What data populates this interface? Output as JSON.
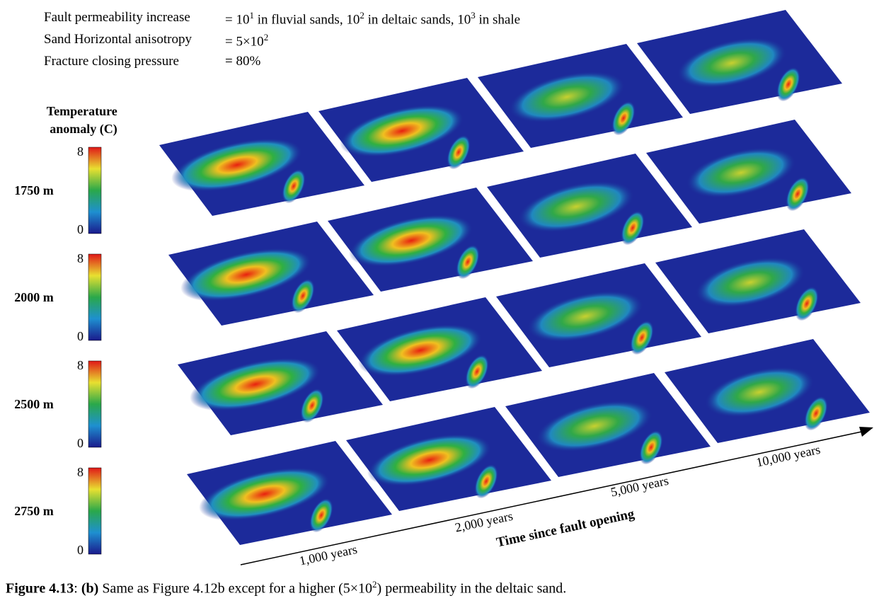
{
  "parameters": [
    {
      "label": "Fault permeability increase",
      "value": [
        "= 10",
        "1",
        " in fluvial sands, 10",
        "2",
        " in deltaic sands, 10",
        "3",
        " in shale"
      ]
    },
    {
      "label": "Sand Horizontal anisotropy",
      "value": [
        "= 5×10",
        "2"
      ]
    },
    {
      "label": "Fracture closing pressure",
      "value": [
        "= 80%"
      ]
    }
  ],
  "colorbar_title": "Temperature anomaly (C)",
  "rows": [
    {
      "depth": "1750 m",
      "ticks": [
        8,
        0
      ]
    },
    {
      "depth": "2000 m",
      "ticks": [
        8,
        0
      ]
    },
    {
      "depth": "2500 m",
      "ticks": [
        8,
        0
      ]
    },
    {
      "depth": "2750 m",
      "ticks": [
        8,
        0
      ]
    }
  ],
  "time_axis": {
    "title": "Time since fault opening",
    "labels": [
      "1,000 years",
      "2,000 years",
      "5,000 years",
      "10,000 years"
    ]
  },
  "caption": {
    "figure": "Figure 4.13",
    "panel": "(b)",
    "text": [
      ": ",
      " Same as Figure 4.12b except for a higher (5×10",
      "2",
      ") permeability in the deltaic sand."
    ]
  }
}
